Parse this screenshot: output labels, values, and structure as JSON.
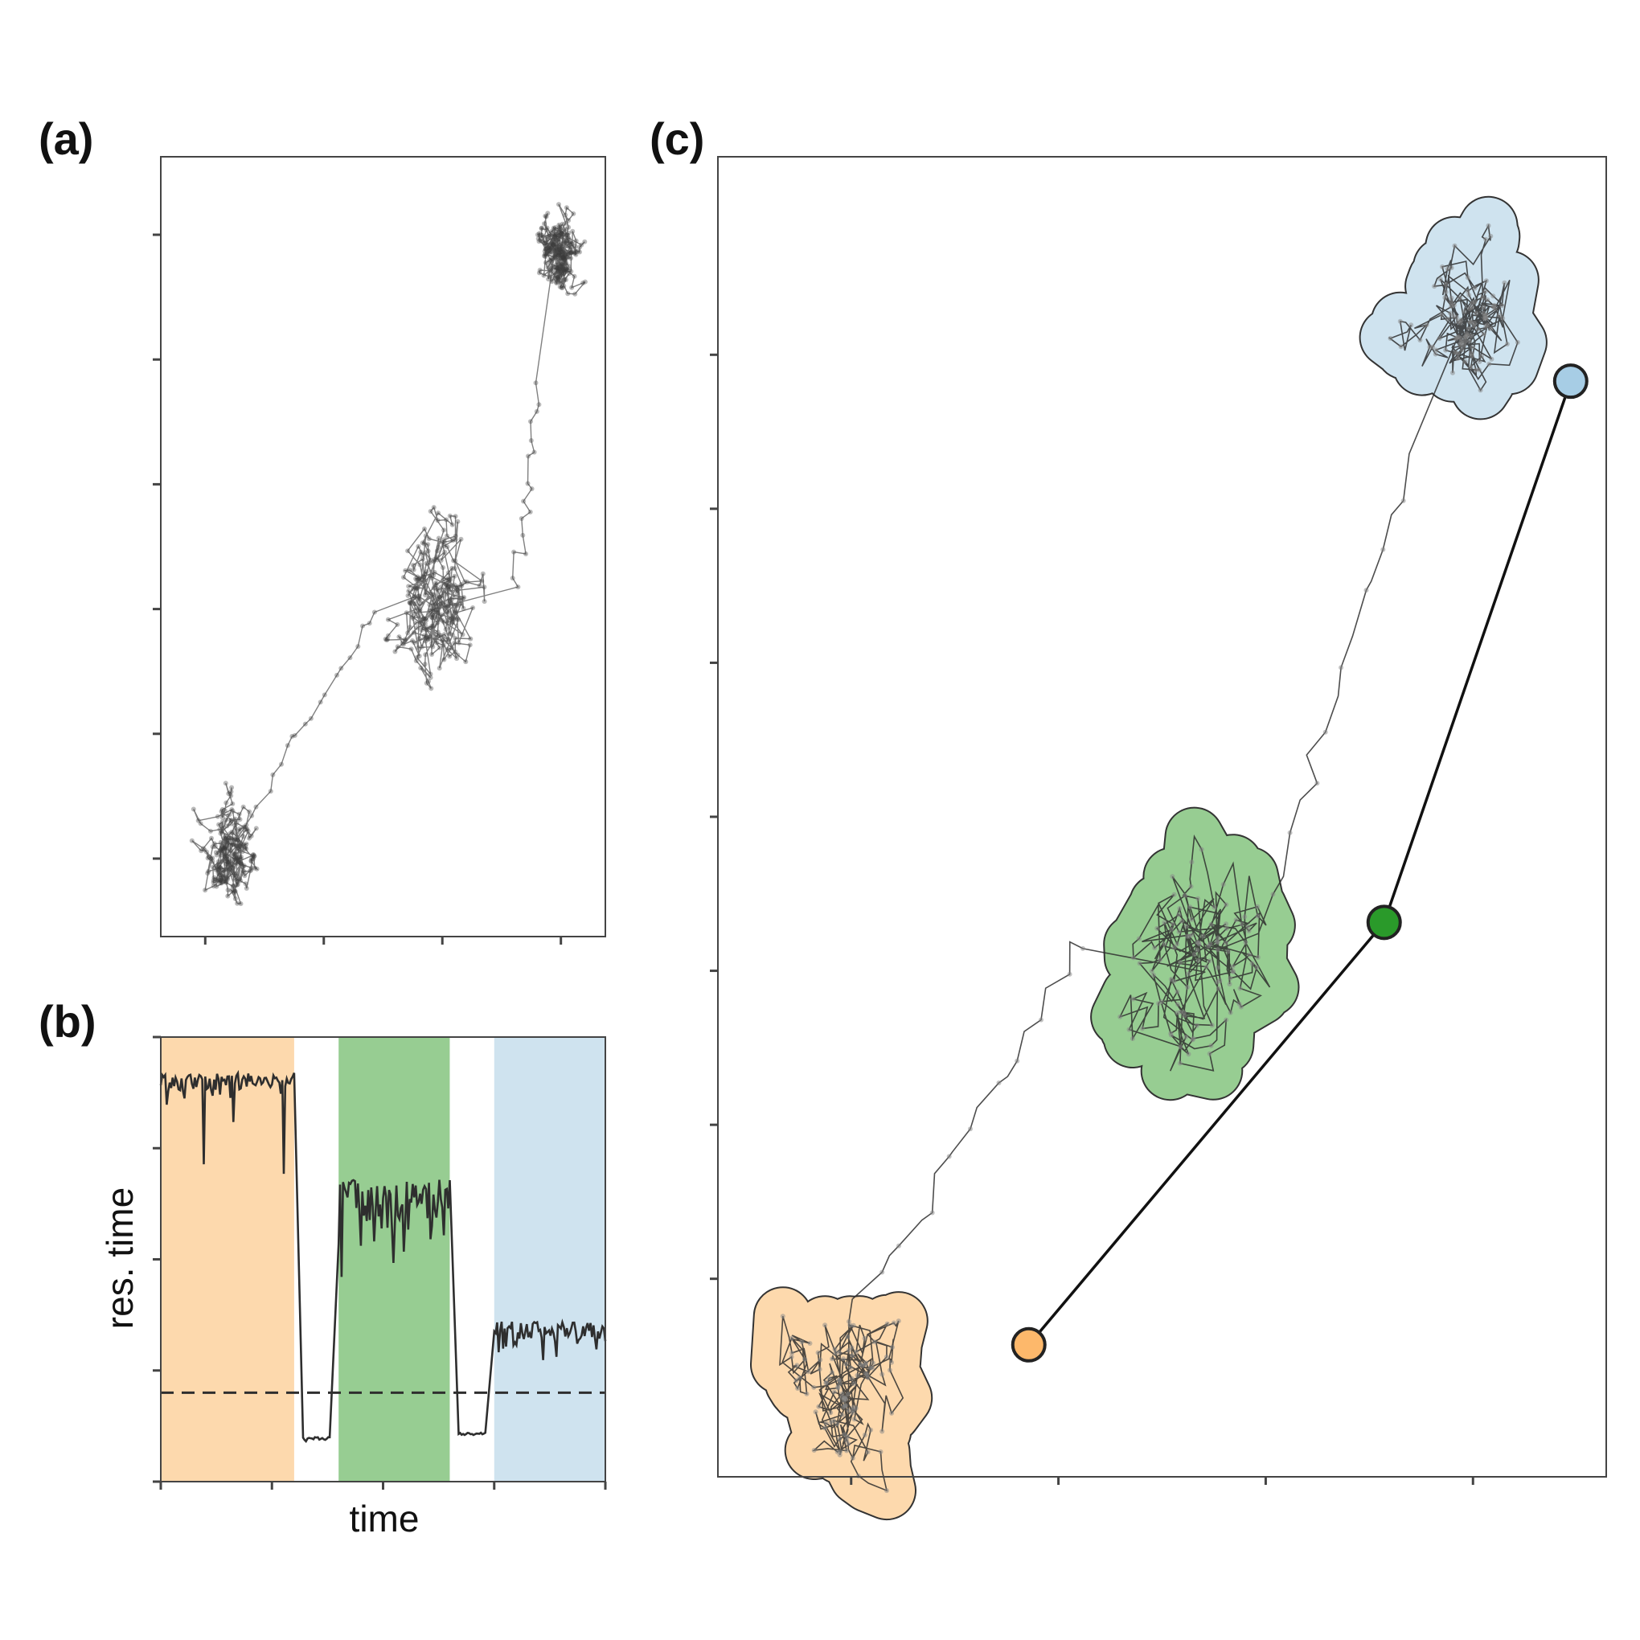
{
  "panels": {
    "a": {
      "label": "(a)"
    },
    "b": {
      "label": "(b)"
    },
    "c": {
      "label": "(c)"
    }
  },
  "colors": {
    "orange": "#fdd9ad",
    "orange_node": "#fdb86b",
    "green": "#97cd92",
    "green_node": "#2a9a2a",
    "blue": "#cfe3ef",
    "blue_node": "#a7cde5",
    "trace": "#2e2e2e",
    "track": "#555555"
  },
  "chart_data": [
    {
      "type": "scatter",
      "panel": "a",
      "description_type": "trajectory",
      "title": "",
      "xlabel": "",
      "ylabel": "",
      "x_tick_count": 4,
      "y_tick_count": 6,
      "grid": false,
      "clusters": [
        {
          "center": [
            0.16,
            0.9
          ],
          "spread": 0.07,
          "points": 260
        },
        {
          "center": [
            0.6,
            0.58
          ],
          "spread": 0.11,
          "points": 300
        },
        {
          "center": [
            0.89,
            0.12
          ],
          "spread": 0.07,
          "points": 260
        }
      ],
      "transitions": [
        {
          "from": [
            0.2,
            0.84
          ],
          "to": [
            0.48,
            0.58
          ],
          "points": 18
        },
        {
          "from": [
            0.8,
            0.55
          ],
          "to": [
            0.85,
            0.3
          ],
          "points": 16
        }
      ]
    },
    {
      "type": "line",
      "panel": "b",
      "title": "",
      "xlabel": "time",
      "ylabel": "res. time",
      "x_tick_count": 5,
      "y_tick_count": 5,
      "grid": false,
      "threshold_level": 0.2,
      "regions": [
        {
          "color": "orange",
          "x": [
            0,
            0.3
          ]
        },
        {
          "color": "green",
          "x": [
            0.4,
            0.65
          ]
        },
        {
          "color": "blue",
          "x": [
            0.75,
            1
          ]
        }
      ],
      "segments": [
        {
          "x": [
            0,
            0.3
          ],
          "level": 0.92
        },
        {
          "x": [
            0.32,
            0.38
          ],
          "level": 0.1
        },
        {
          "x": [
            0.4,
            0.65
          ],
          "level": 0.68
        },
        {
          "x": [
            0.67,
            0.73
          ],
          "level": 0.11
        },
        {
          "x": [
            0.75,
            1
          ],
          "level": 0.36
        }
      ]
    },
    {
      "type": "scatter",
      "panel": "c",
      "title": "",
      "xlabel": "",
      "ylabel": "",
      "x_tick_count": 4,
      "y_tick_count": 7,
      "grid": false,
      "clusters": [
        {
          "color": "orange",
          "center": [
            0.14,
            0.93
          ],
          "spread": 0.07
        },
        {
          "color": "green",
          "center": [
            0.53,
            0.62
          ],
          "spread": 0.1
        },
        {
          "color": "blue",
          "center": [
            0.84,
            0.13
          ],
          "spread": 0.07
        }
      ],
      "network": {
        "nodes": [
          {
            "id": "orange",
            "x": 0.35,
            "y": 0.9
          },
          {
            "id": "green",
            "x": 0.75,
            "y": 0.58
          },
          {
            "id": "blue",
            "x": 0.96,
            "y": 0.17
          }
        ],
        "edges": [
          [
            "orange",
            "green"
          ],
          [
            "green",
            "blue"
          ]
        ]
      }
    }
  ]
}
